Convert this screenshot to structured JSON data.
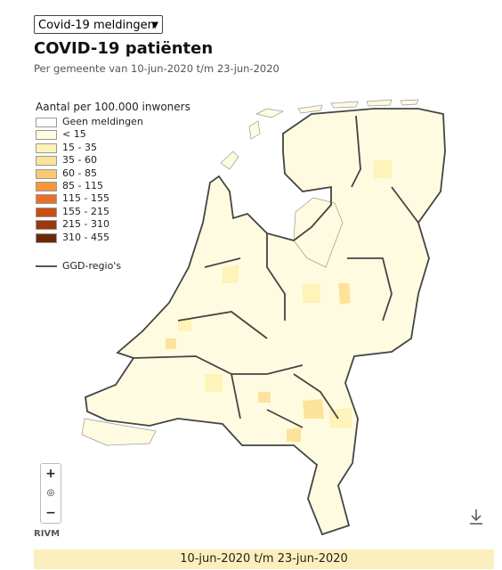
{
  "dropdown": "Covid-19 meldingen",
  "title": "COVID-19 patiënten",
  "subtitle": "Per gemeente van 10-jun-2020 t/m 23-jun-2020",
  "legend": {
    "title": "Aantal per 100.000 inwoners",
    "items": [
      {
        "label": "Geen meldingen",
        "color": "#ffffff"
      },
      {
        "label": "< 15",
        "color": "#fffbe0"
      },
      {
        "label": "15 - 35",
        "color": "#fef3b8"
      },
      {
        "label": "35 - 60",
        "color": "#fde39a"
      },
      {
        "label": "60 - 85",
        "color": "#fcc874"
      },
      {
        "label": "85 - 115",
        "color": "#f7963a"
      },
      {
        "label": "115 - 155",
        "color": "#e8702a"
      },
      {
        "label": "155 - 215",
        "color": "#c94e14"
      },
      {
        "label": "215 - 310",
        "color": "#9c380c"
      },
      {
        "label": "310 - 455",
        "color": "#6b2808"
      }
    ],
    "region_line": "GGD-regio's"
  },
  "zoom": {
    "in": "+",
    "reset": "◎",
    "out": "−"
  },
  "credit": "RIVM",
  "period": "10-jun-2020 t/m 23-jun-2020"
}
